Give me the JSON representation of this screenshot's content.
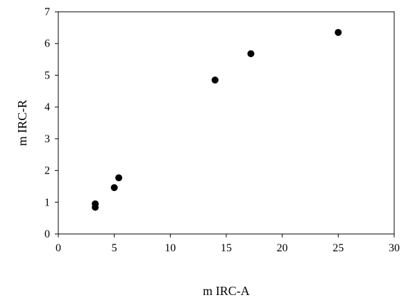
{
  "chart_data": {
    "type": "scatter",
    "title": "",
    "xlabel": "m IRC-A",
    "ylabel": "m IRC-R",
    "xlim": [
      0,
      30
    ],
    "ylim": [
      0,
      7
    ],
    "xticks": [
      0,
      5,
      10,
      15,
      20,
      25,
      30
    ],
    "yticks": [
      0,
      1,
      2,
      3,
      4,
      5,
      6,
      7
    ],
    "grid": false,
    "legend": "none",
    "marker_color": "#000000",
    "series": [
      {
        "points": [
          {
            "x": 3.3,
            "y": 0.95
          },
          {
            "x": 3.3,
            "y": 0.84
          },
          {
            "x": 5.0,
            "y": 1.46
          },
          {
            "x": 5.4,
            "y": 1.77
          },
          {
            "x": 14.0,
            "y": 4.85
          },
          {
            "x": 17.2,
            "y": 5.68
          },
          {
            "x": 25.0,
            "y": 6.35
          }
        ]
      }
    ]
  }
}
